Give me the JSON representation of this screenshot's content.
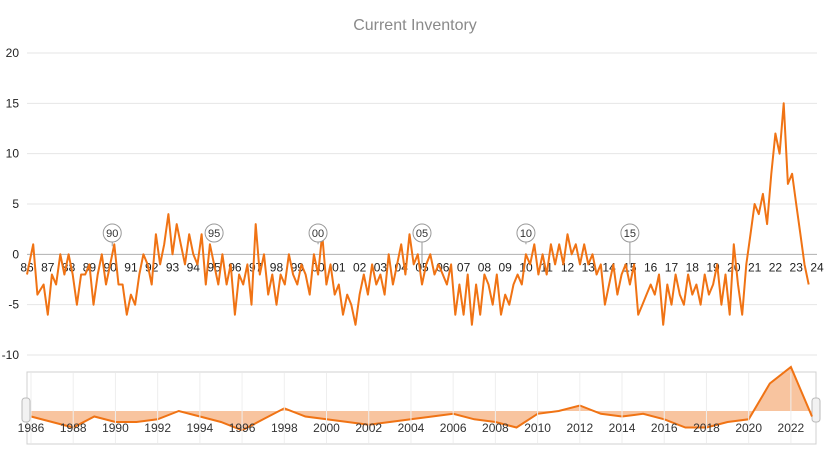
{
  "chart_data": {
    "type": "line",
    "title": "Current Inventory",
    "xlabel": "",
    "ylabel": "",
    "ylim": [
      -10,
      20
    ],
    "y_ticks": [
      "-10",
      "-5",
      "0",
      "5",
      "10",
      "15",
      "20"
    ],
    "x_range": [
      1986,
      2024
    ],
    "x_ticks": [
      "86",
      "87",
      "88",
      "89",
      "90",
      "91",
      "92",
      "93",
      "94",
      "95",
      "96",
      "97",
      "98",
      "99",
      "00",
      "01",
      "02",
      "03",
      "04",
      "05",
      "06",
      "07",
      "08",
      "09",
      "10",
      "11",
      "12",
      "13",
      "14",
      "15",
      "16",
      "17",
      "18",
      "19",
      "20",
      "21",
      "22",
      "23",
      "24"
    ],
    "grid": true,
    "legend": "none",
    "colors": {
      "line": "#f07314",
      "nav_fill": "#f8c49f",
      "grid": "#e6e6e6"
    },
    "flags": [
      {
        "label": "90",
        "x": 1990.1,
        "y": 0.8
      },
      {
        "label": "95",
        "x": 1995.0,
        "y": 2.4
      },
      {
        "label": "00",
        "x": 2000.0,
        "y": 1.0
      },
      {
        "label": "05",
        "x": 2005.0,
        "y": -1.0
      },
      {
        "label": "10",
        "x": 2010.0,
        "y": 1.0
      },
      {
        "label": "15",
        "x": 2015.0,
        "y": -1.0
      }
    ],
    "series": [
      {
        "values": [
          [
            1986.0,
            -2
          ],
          [
            1986.3,
            1
          ],
          [
            1986.5,
            -4
          ],
          [
            1986.8,
            -3
          ],
          [
            1987.0,
            -6
          ],
          [
            1987.2,
            -2
          ],
          [
            1987.4,
            -3
          ],
          [
            1987.6,
            0
          ],
          [
            1987.8,
            -2
          ],
          [
            1988.0,
            0
          ],
          [
            1988.2,
            -2
          ],
          [
            1988.4,
            -5
          ],
          [
            1988.6,
            -2
          ],
          [
            1988.8,
            -2
          ],
          [
            1989.0,
            -1
          ],
          [
            1989.2,
            -5
          ],
          [
            1989.4,
            -2
          ],
          [
            1989.6,
            0
          ],
          [
            1989.8,
            -3
          ],
          [
            1990.0,
            -1
          ],
          [
            1990.2,
            1
          ],
          [
            1990.4,
            -3
          ],
          [
            1990.6,
            -3
          ],
          [
            1990.8,
            -6
          ],
          [
            1991.0,
            -4
          ],
          [
            1991.2,
            -5
          ],
          [
            1991.4,
            -2
          ],
          [
            1991.6,
            0
          ],
          [
            1991.8,
            -1
          ],
          [
            1992.0,
            -3
          ],
          [
            1992.2,
            2
          ],
          [
            1992.4,
            -1
          ],
          [
            1992.6,
            1
          ],
          [
            1992.8,
            4
          ],
          [
            1993.0,
            0
          ],
          [
            1993.2,
            3
          ],
          [
            1993.4,
            1
          ],
          [
            1993.6,
            -1
          ],
          [
            1993.8,
            2
          ],
          [
            1994.0,
            0
          ],
          [
            1994.2,
            -1
          ],
          [
            1994.4,
            2
          ],
          [
            1994.6,
            -3
          ],
          [
            1994.8,
            1
          ],
          [
            1995.0,
            -1
          ],
          [
            1995.2,
            -3
          ],
          [
            1995.4,
            0
          ],
          [
            1995.6,
            -3
          ],
          [
            1995.8,
            -1
          ],
          [
            1996.0,
            -6
          ],
          [
            1996.2,
            -2
          ],
          [
            1996.4,
            -3
          ],
          [
            1996.6,
            -1
          ],
          [
            1996.8,
            -5
          ],
          [
            1997.0,
            3
          ],
          [
            1997.2,
            -2
          ],
          [
            1997.4,
            0
          ],
          [
            1997.6,
            -4
          ],
          [
            1997.8,
            -2
          ],
          [
            1998.0,
            -5
          ],
          [
            1998.2,
            -2
          ],
          [
            1998.4,
            -3
          ],
          [
            1998.6,
            0
          ],
          [
            1998.8,
            -2
          ],
          [
            1999.0,
            -3
          ],
          [
            1999.2,
            -1
          ],
          [
            1999.4,
            -2
          ],
          [
            1999.6,
            -4
          ],
          [
            1999.8,
            0
          ],
          [
            2000.0,
            -2
          ],
          [
            2000.2,
            2
          ],
          [
            2000.4,
            -3
          ],
          [
            2000.6,
            -1
          ],
          [
            2000.8,
            -4
          ],
          [
            2001.0,
            -3
          ],
          [
            2001.2,
            -6
          ],
          [
            2001.4,
            -4
          ],
          [
            2001.6,
            -5
          ],
          [
            2001.8,
            -7
          ],
          [
            2002.0,
            -4
          ],
          [
            2002.2,
            -2
          ],
          [
            2002.4,
            -4
          ],
          [
            2002.6,
            -1
          ],
          [
            2002.8,
            -3
          ],
          [
            2003.0,
            -2
          ],
          [
            2003.2,
            -4
          ],
          [
            2003.4,
            0
          ],
          [
            2003.6,
            -3
          ],
          [
            2003.8,
            -1
          ],
          [
            2004.0,
            1
          ],
          [
            2004.2,
            -2
          ],
          [
            2004.4,
            2
          ],
          [
            2004.6,
            -1
          ],
          [
            2004.8,
            0
          ],
          [
            2005.0,
            -3
          ],
          [
            2005.2,
            -1
          ],
          [
            2005.4,
            0
          ],
          [
            2005.6,
            -2
          ],
          [
            2005.8,
            -1
          ],
          [
            2006.0,
            -2
          ],
          [
            2006.2,
            -3
          ],
          [
            2006.4,
            -1
          ],
          [
            2006.6,
            -6
          ],
          [
            2006.8,
            -3
          ],
          [
            2007.0,
            -6
          ],
          [
            2007.2,
            -2
          ],
          [
            2007.4,
            -7
          ],
          [
            2007.6,
            -3
          ],
          [
            2007.8,
            -6
          ],
          [
            2008.0,
            -2
          ],
          [
            2008.2,
            -3
          ],
          [
            2008.4,
            -5
          ],
          [
            2008.6,
            -2
          ],
          [
            2008.8,
            -6
          ],
          [
            2009.0,
            -4
          ],
          [
            2009.2,
            -5
          ],
          [
            2009.4,
            -3
          ],
          [
            2009.6,
            -2
          ],
          [
            2009.8,
            -3
          ],
          [
            2010.0,
            0
          ],
          [
            2010.2,
            -1
          ],
          [
            2010.4,
            1
          ],
          [
            2010.6,
            -2
          ],
          [
            2010.8,
            0
          ],
          [
            2011.0,
            -2
          ],
          [
            2011.2,
            1
          ],
          [
            2011.4,
            -1
          ],
          [
            2011.6,
            1
          ],
          [
            2011.8,
            -1
          ],
          [
            2012.0,
            2
          ],
          [
            2012.2,
            0
          ],
          [
            2012.4,
            1
          ],
          [
            2012.6,
            -1
          ],
          [
            2012.8,
            1
          ],
          [
            2013.0,
            -1
          ],
          [
            2013.2,
            0
          ],
          [
            2013.4,
            -2
          ],
          [
            2013.6,
            -1
          ],
          [
            2013.8,
            -5
          ],
          [
            2014.0,
            -3
          ],
          [
            2014.2,
            -1
          ],
          [
            2014.4,
            -4
          ],
          [
            2014.6,
            -2
          ],
          [
            2014.8,
            -1
          ],
          [
            2015.0,
            -3
          ],
          [
            2015.2,
            -1
          ],
          [
            2015.4,
            -6
          ],
          [
            2015.6,
            -5
          ],
          [
            2015.8,
            -4
          ],
          [
            2016.0,
            -3
          ],
          [
            2016.2,
            -4
          ],
          [
            2016.4,
            -2
          ],
          [
            2016.6,
            -7
          ],
          [
            2016.8,
            -3
          ],
          [
            2017.0,
            -5
          ],
          [
            2017.2,
            -2
          ],
          [
            2017.4,
            -4
          ],
          [
            2017.6,
            -5
          ],
          [
            2017.8,
            -2
          ],
          [
            2018.0,
            -4
          ],
          [
            2018.2,
            -3
          ],
          [
            2018.4,
            -5
          ],
          [
            2018.6,
            -2
          ],
          [
            2018.8,
            -4
          ],
          [
            2019.0,
            -3
          ],
          [
            2019.2,
            -1
          ],
          [
            2019.4,
            -5
          ],
          [
            2019.6,
            -2
          ],
          [
            2019.8,
            -6
          ],
          [
            2020.0,
            1
          ],
          [
            2020.2,
            -3
          ],
          [
            2020.4,
            -6
          ],
          [
            2020.6,
            -1
          ],
          [
            2020.8,
            2
          ],
          [
            2021.0,
            5
          ],
          [
            2021.2,
            4
          ],
          [
            2021.4,
            6
          ],
          [
            2021.6,
            3
          ],
          [
            2021.8,
            8
          ],
          [
            2022.0,
            12
          ],
          [
            2022.2,
            10
          ],
          [
            2022.4,
            15
          ],
          [
            2022.6,
            7
          ],
          [
            2022.8,
            8
          ],
          [
            2023.0,
            5
          ],
          [
            2023.2,
            2
          ],
          [
            2023.4,
            -1
          ],
          [
            2023.6,
            -3
          ]
        ]
      }
    ],
    "navigator": {
      "x_ticks": [
        "1986",
        "1988",
        "1990",
        "1992",
        "1994",
        "1996",
        "1998",
        "2000",
        "2002",
        "2004",
        "2006",
        "2008",
        "2010",
        "2012",
        "2014",
        "2016",
        "2018",
        "2020",
        "2022"
      ],
      "values": [
        [
          1986.0,
          -1
        ],
        [
          1987.0,
          -2
        ],
        [
          1988.0,
          -3
        ],
        [
          1989.0,
          -1
        ],
        [
          1990.0,
          -2
        ],
        [
          1991.0,
          -2
        ],
        [
          1992.0,
          -1.5
        ],
        [
          1993.0,
          0
        ],
        [
          1994.0,
          -1
        ],
        [
          1995.0,
          -2
        ],
        [
          1996.0,
          -3.5
        ],
        [
          1997.0,
          -1.5
        ],
        [
          1998.0,
          0.5
        ],
        [
          1999.0,
          -1
        ],
        [
          2000.0,
          -1.5
        ],
        [
          2001.0,
          -2
        ],
        [
          2002.0,
          -2.5
        ],
        [
          2003.0,
          -2
        ],
        [
          2004.0,
          -1.5
        ],
        [
          2005.0,
          -1
        ],
        [
          2006.0,
          -0.5
        ],
        [
          2007.0,
          -1.5
        ],
        [
          2008.0,
          -2
        ],
        [
          2009.0,
          -3
        ],
        [
          2010.0,
          -0.5
        ],
        [
          2011.0,
          0
        ],
        [
          2012.0,
          1
        ],
        [
          2013.0,
          -0.5
        ],
        [
          2014.0,
          -1
        ],
        [
          2015.0,
          -0.5
        ],
        [
          2016.0,
          -1.5
        ],
        [
          2017.0,
          -3
        ],
        [
          2018.0,
          -3
        ],
        [
          2019.0,
          -2
        ],
        [
          2020.0,
          -1.5
        ],
        [
          2021.0,
          5
        ],
        [
          2022.0,
          8
        ],
        [
          2023.0,
          -1
        ]
      ]
    }
  }
}
